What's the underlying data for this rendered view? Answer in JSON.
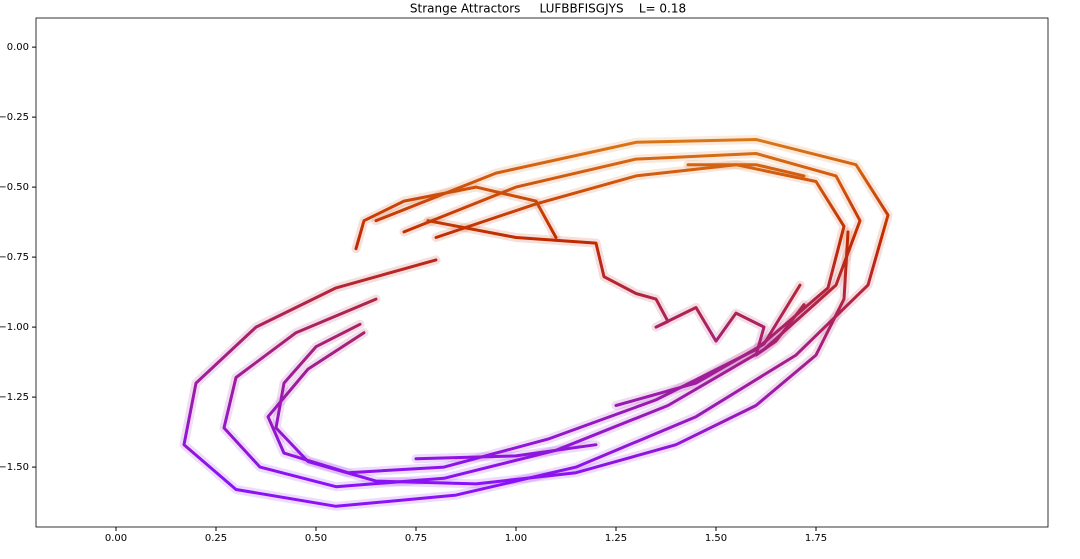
{
  "chart_data": {
    "type": "line",
    "title": "Strange Attractors     LUFBBFISGJYS    L= 0.18",
    "xlim": [
      -0.2,
      2.33
    ],
    "ylim": [
      -1.714,
      0.104
    ],
    "xticks": [
      {
        "value": 0,
        "label": "0.00"
      },
      {
        "value": 0.25,
        "label": "0.25"
      },
      {
        "value": 0.5,
        "label": "0.50"
      },
      {
        "value": 0.75,
        "label": "0.75"
      },
      {
        "value": 1,
        "label": "1.00"
      },
      {
        "value": 1.25,
        "label": "1.25"
      },
      {
        "value": 1.5,
        "label": "1.50"
      },
      {
        "value": 1.75,
        "label": "1.75"
      }
    ],
    "yticks": [
      {
        "value": 0,
        "label": "0.00"
      },
      {
        "value": -0.25,
        "label": "−0.25"
      },
      {
        "value": -0.5,
        "label": "−0.50"
      },
      {
        "value": -0.75,
        "label": "−0.75"
      },
      {
        "value": -1,
        "label": "−1.00"
      },
      {
        "value": -1.25,
        "label": "−1.25"
      },
      {
        "value": -1.5,
        "label": "−1.50"
      }
    ],
    "grid": false,
    "colormap": [
      "#8a12f5",
      "#a21f8a",
      "#c02a00",
      "#e0861c"
    ],
    "series": [
      {
        "x": [
          0.65,
          0.95,
          1.3,
          1.6,
          1.85,
          1.93,
          1.88,
          1.7,
          1.45,
          1.15,
          0.85,
          0.55,
          0.3,
          0.17,
          0.2,
          0.35,
          0.55,
          0.8
        ],
        "values": [
          -0.62,
          -0.45,
          -0.34,
          -0.33,
          -0.42,
          -0.6,
          -0.85,
          -1.1,
          -1.32,
          -1.5,
          -1.6,
          -1.64,
          -1.58,
          -1.42,
          -1.2,
          -1.0,
          -0.86,
          -0.76
        ]
      },
      {
        "x": [
          0.72,
          1.0,
          1.3,
          1.6,
          1.8,
          1.86,
          1.8,
          1.62,
          1.38,
          1.1,
          0.82,
          0.55,
          0.36,
          0.27,
          0.3,
          0.45,
          0.65
        ],
        "values": [
          -0.66,
          -0.5,
          -0.4,
          -0.38,
          -0.46,
          -0.62,
          -0.85,
          -1.08,
          -1.28,
          -1.44,
          -1.54,
          -1.57,
          -1.5,
          -1.36,
          -1.18,
          -1.02,
          -0.9
        ]
      },
      {
        "x": [
          0.8,
          1.05,
          1.3,
          1.55,
          1.75,
          1.82,
          1.78,
          1.6,
          1.35,
          1.08,
          0.82,
          0.58,
          0.42,
          0.38,
          0.48,
          0.62
        ],
        "values": [
          -0.68,
          -0.56,
          -0.46,
          -0.42,
          -0.48,
          -0.64,
          -0.86,
          -1.08,
          -1.26,
          -1.4,
          -1.5,
          -1.52,
          -1.45,
          -1.32,
          -1.15,
          -1.02
        ]
      },
      {
        "x": [
          0.61,
          0.5,
          0.42,
          0.4,
          0.48,
          0.65,
          0.9,
          1.15,
          1.4,
          1.6,
          1.75,
          1.82,
          1.83
        ],
        "values": [
          -0.99,
          -1.07,
          -1.2,
          -1.36,
          -1.48,
          -1.55,
          -1.56,
          -1.52,
          -1.42,
          -1.28,
          -1.1,
          -0.9,
          -0.66
        ]
      },
      {
        "x": [
          1.25,
          1.45,
          1.62,
          1.71
        ],
        "values": [
          -1.28,
          -1.2,
          -1.06,
          -0.85
        ]
      },
      {
        "x": [
          0.75,
          1.0,
          1.2
        ],
        "values": [
          -1.47,
          -1.46,
          -1.42
        ]
      },
      {
        "x": [
          1.43,
          1.6,
          1.72
        ],
        "values": [
          -0.42,
          -0.42,
          -0.46
        ]
      },
      {
        "x": [
          0.78,
          1.0,
          1.2,
          1.22,
          1.3,
          1.35,
          1.38,
          1.35,
          1.45,
          1.5,
          1.55,
          1.62,
          1.6,
          1.65,
          1.72
        ],
        "values": [
          -0.62,
          -0.68,
          -0.7,
          -0.82,
          -0.88,
          -0.9,
          -0.98,
          -1.0,
          -0.93,
          -1.05,
          -0.95,
          -1.0,
          -1.1,
          -1.05,
          -0.92
        ]
      },
      {
        "x": [
          0.6,
          0.62,
          0.72,
          0.9,
          1.05,
          1.1
        ],
        "values": [
          -0.72,
          -0.62,
          -0.55,
          -0.5,
          -0.55,
          -0.68
        ]
      }
    ]
  }
}
